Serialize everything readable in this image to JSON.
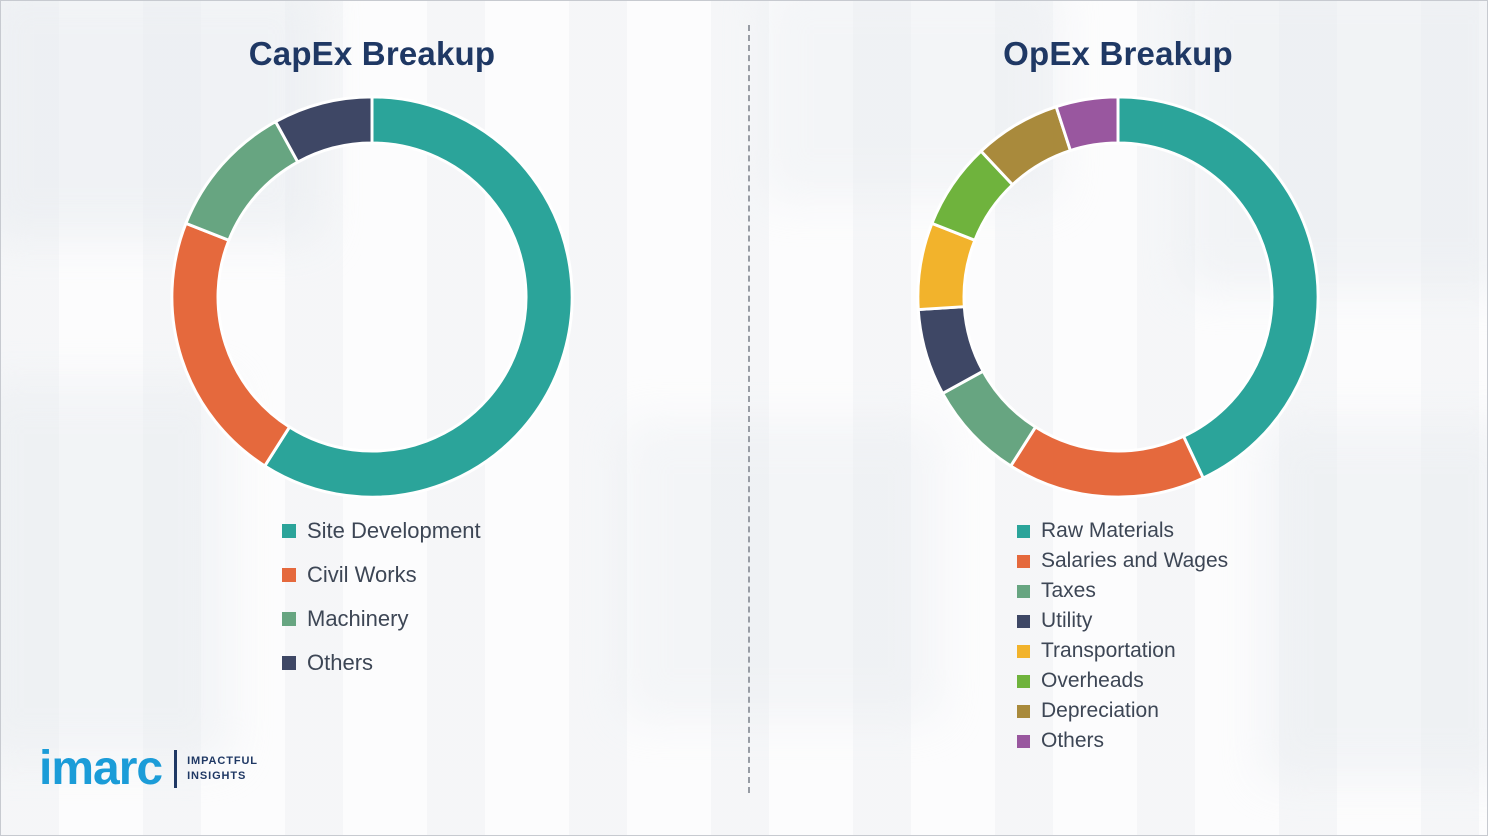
{
  "page": {
    "background_color": "#fcfcfd",
    "divider_color": "#979ca4",
    "title_color": "#1F3864",
    "legend_text_color": "#3D4655"
  },
  "chart_data": [
    {
      "type": "pie",
      "subtype": "donut",
      "title": "CapEx Breakup",
      "title_color": "#1F3864",
      "labels": [
        "Site Development",
        "Civil Works",
        "Machinery",
        "Others"
      ],
      "values": [
        59,
        22,
        11,
        8
      ],
      "unit": "percent-share-estimated-from-arc-angles",
      "colors": [
        "#2BA49A",
        "#E5693D",
        "#67A581",
        "#3E4765"
      ],
      "start_angle_deg": 0,
      "direction": "clockwise",
      "data_labels_shown": false,
      "legend_position": "below-chart-left",
      "legend_style": "spacious"
    },
    {
      "type": "pie",
      "subtype": "donut",
      "title": "OpEx Breakup",
      "title_color": "#1F3864",
      "labels": [
        "Raw Materials",
        "Salaries and Wages",
        "Taxes",
        "Utility",
        "Transportation",
        "Overheads",
        "Depreciation",
        "Others"
      ],
      "values": [
        43,
        16,
        8,
        7,
        7,
        7,
        7,
        5
      ],
      "unit": "percent-share-estimated-from-arc-angles",
      "colors": [
        "#2BA49A",
        "#E5693D",
        "#67A581",
        "#3E4765",
        "#F2B32C",
        "#6FB33D",
        "#A98A3C",
        "#99579F"
      ],
      "start_angle_deg": 0,
      "direction": "clockwise",
      "data_labels_shown": false,
      "legend_position": "below-chart-left",
      "legend_style": "compact"
    }
  ],
  "logo": {
    "brand": "imarc",
    "tagline_line1": "IMPACTFUL",
    "tagline_line2": "INSIGHTS",
    "brand_color": "#1B9CD8",
    "tagline_color": "#1F3864"
  }
}
